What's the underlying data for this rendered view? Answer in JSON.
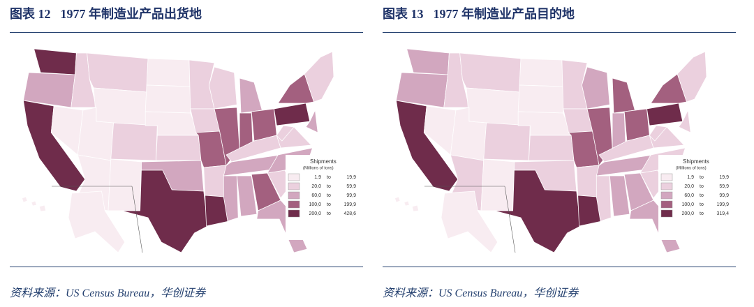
{
  "figures": [
    {
      "label": "图表 12",
      "title": "1977 年制造业产品出货地",
      "source": "资料来源：US Census Bureau，华创证券",
      "legend": {
        "title": "Shipments",
        "subtitle": "(Millions of tons)",
        "connector": "to",
        "rows": [
          {
            "from": "1,9",
            "to": "19,9",
            "color": "#f8ecf1"
          },
          {
            "from": "20,0",
            "to": "59,9",
            "color": "#ebd0de"
          },
          {
            "from": "60,0",
            "to": "99,9",
            "color": "#d2a7bf"
          },
          {
            "from": "100,0",
            "to": "199,9",
            "color": "#a3607f"
          },
          {
            "from": "200,0",
            "to": "428,6",
            "color": "#6f2c4b"
          }
        ]
      }
    },
    {
      "label": "图表 13",
      "title": "1977 年制造业产品目的地",
      "source": "资料来源：US Census Bureau，华创证券",
      "legend": {
        "title": "Shipments",
        "subtitle": "(Millions of tons)",
        "connector": "to",
        "rows": [
          {
            "from": "1,9",
            "to": "19,9",
            "color": "#f8ecf1"
          },
          {
            "from": "20,0",
            "to": "59,9",
            "color": "#ebd0de"
          },
          {
            "from": "60,0",
            "to": "99,9",
            "color": "#d2a7bf"
          },
          {
            "from": "100,0",
            "to": "199,9",
            "color": "#a3607f"
          },
          {
            "from": "200,0",
            "to": "319,4",
            "color": "#6f2c4b"
          }
        ]
      }
    }
  ]
}
